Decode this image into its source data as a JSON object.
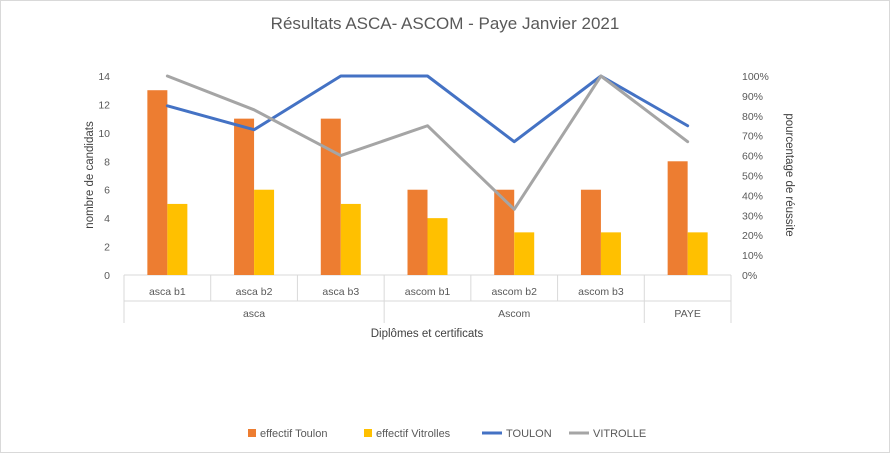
{
  "chart_data": {
    "type": "bar",
    "title": "Résultats ASCA- ASCOM - Paye Janvier 2021",
    "xlabel": "Diplômes et certificats",
    "ylabel": "nombre de candidats",
    "y2label": "pourcentage de réussite",
    "categories": [
      "asca b1",
      "asca b2",
      "asca b3",
      "ascom b1",
      "ascom b2",
      "ascom b3",
      ""
    ],
    "groups": [
      {
        "label": "asca",
        "count": 3
      },
      {
        "label": "Ascom",
        "count": 3
      },
      {
        "label": "PAYE",
        "count": 1
      }
    ],
    "ylim": [
      0,
      14
    ],
    "yticks": [
      0,
      2,
      4,
      6,
      8,
      10,
      12,
      14
    ],
    "y2lim": [
      0,
      100
    ],
    "y2ticks": [
      "0%",
      "10%",
      "20%",
      "30%",
      "40%",
      "50%",
      "60%",
      "70%",
      "80%",
      "90%",
      "100%"
    ],
    "series": [
      {
        "name": "effectif Toulon",
        "kind": "bar",
        "axis": "left",
        "color": "#ED7D31",
        "values": [
          13,
          11,
          11,
          6,
          6,
          6,
          8
        ]
      },
      {
        "name": "effectif Vitrolles",
        "kind": "bar",
        "axis": "left",
        "color": "#FFC000",
        "values": [
          5,
          6,
          5,
          4,
          3,
          3,
          3
        ]
      },
      {
        "name": "TOULON",
        "kind": "line",
        "axis": "right",
        "color": "#4472C4",
        "values": [
          85,
          73,
          100,
          100,
          67,
          100,
          75
        ]
      },
      {
        "name": "VITROLLE",
        "kind": "line",
        "axis": "right",
        "color": "#A5A5A5",
        "values": [
          100,
          83,
          60,
          75,
          33,
          100,
          67
        ]
      }
    ],
    "legend_position": "bottom",
    "grid": false
  }
}
